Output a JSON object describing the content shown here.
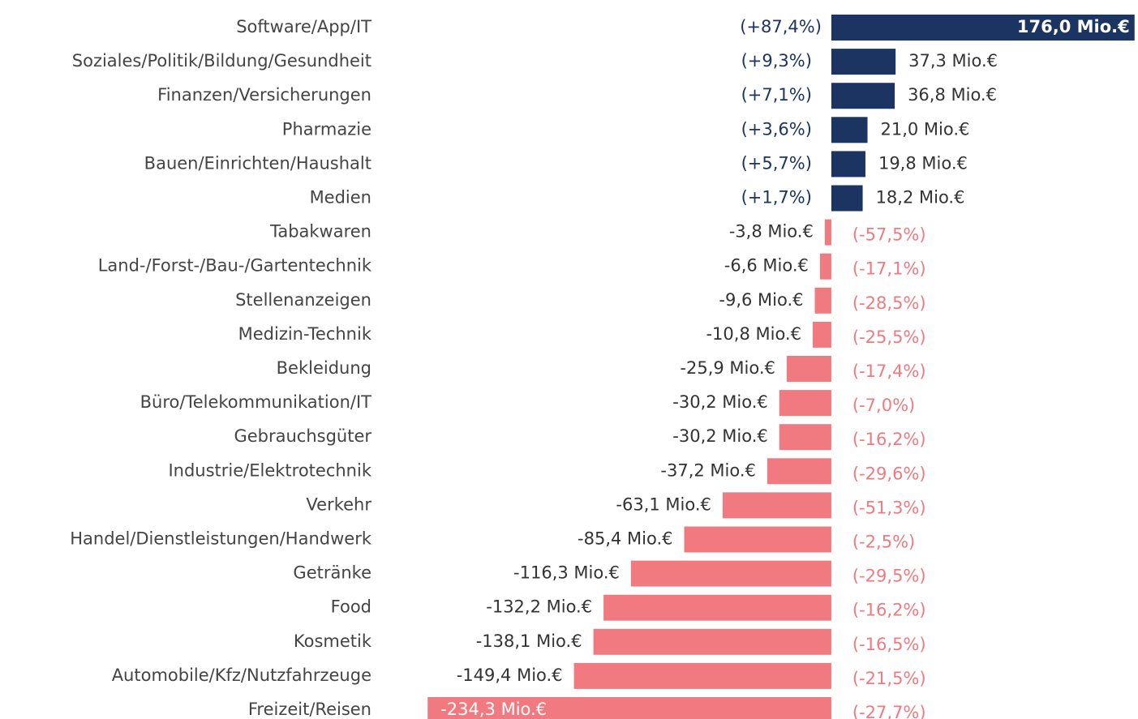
{
  "chart_data": {
    "type": "bar",
    "orientation": "horizontal",
    "categories": [
      "Software/App/IT",
      "Soziales/Politik/Bildung/Gesundheit",
      "Finanzen/Versicherungen",
      "Pharmazie",
      "Bauen/Einrichten/Haushalt",
      "Medien",
      "Tabakwaren",
      "Land-/Forst-/Bau-/Gartentechnik",
      "Stellenanzeigen",
      "Medizin-Technik",
      "Bekleidung",
      "Büro/Telekommunikation/IT",
      "Gebrauchsgüter",
      "Industrie/Elektrotechnik",
      "Verkehr",
      "Handel/Dienstleistungen/Handwerk",
      "Getränke",
      "Food",
      "Kosmetik",
      "Automobile/Kfz/Nutzfahrzeuge",
      "Freizeit/Reisen"
    ],
    "values": [
      176.0,
      37.3,
      36.8,
      21.0,
      19.8,
      18.2,
      -3.8,
      -6.6,
      -9.6,
      -10.8,
      -25.9,
      -30.2,
      -30.2,
      -37.2,
      -63.1,
      -85.4,
      -116.3,
      -132.2,
      -138.1,
      -149.4,
      -234.3
    ],
    "value_labels": [
      "176,0 Mio.€",
      "37,3 Mio.€",
      "36,8 Mio.€",
      "21,0 Mio.€",
      "19,8 Mio.€",
      "18,2 Mio.€",
      "-3,8 Mio.€",
      "-6,6 Mio.€",
      "-9,6 Mio.€",
      "-10,8 Mio.€",
      "-25,9 Mio.€",
      "-30,2 Mio.€",
      "-30,2 Mio.€",
      "-37,2 Mio.€",
      "-63,1 Mio.€",
      "-85,4 Mio.€",
      "-116,3 Mio.€",
      "-132,2 Mio.€",
      "-138,1 Mio.€",
      "-149,4 Mio.€",
      "-234,3 Mio.€"
    ],
    "change_labels": [
      "(+87,4%)",
      "(+9,3%)",
      "(+7,1%)",
      "(+3,6%)",
      "(+5,7%)",
      "(+1,7%)",
      "(-57,5%)",
      "(-17,1%)",
      "(-28,5%)",
      "(-25,5%)",
      "(-17,4%)",
      "(-7,0%)",
      "(-16,2%)",
      "(-29,6%)",
      "(-51,3%)",
      "(-2,5%)",
      "(-29,5%)",
      "(-16,2%)",
      "(-16,5%)",
      "(-21,5%)",
      "(-27,7%)"
    ],
    "positive_color": "#1c3461",
    "negative_color": "#f07a7f",
    "xlim": [
      -241,
      178
    ]
  }
}
